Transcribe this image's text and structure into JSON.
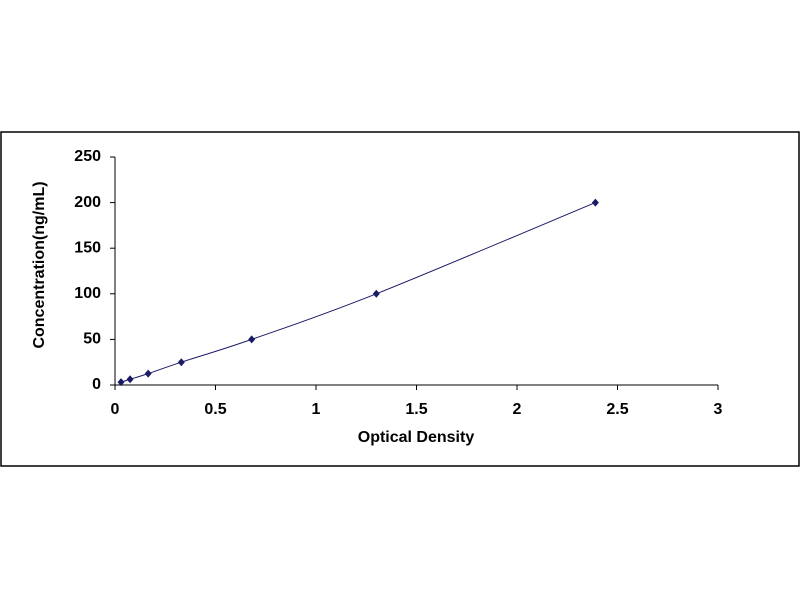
{
  "chart_data": {
    "type": "scatter",
    "x_label": "Optical Density",
    "y_label": "Concentration(ng/mL)",
    "x": [
      0.03,
      0.075,
      0.165,
      0.33,
      0.68,
      1.3,
      2.39
    ],
    "values": [
      3.12,
      6.25,
      12.5,
      25,
      50,
      100,
      200
    ],
    "color": "#1a1a66",
    "line": true,
    "xlim": [
      0,
      3
    ],
    "xticks": [
      0,
      0.5,
      1,
      1.5,
      2,
      2.5,
      3
    ],
    "ylim": [
      0,
      250
    ],
    "yticks": [
      0,
      50,
      100,
      150,
      200,
      250
    ],
    "grid": false
  }
}
